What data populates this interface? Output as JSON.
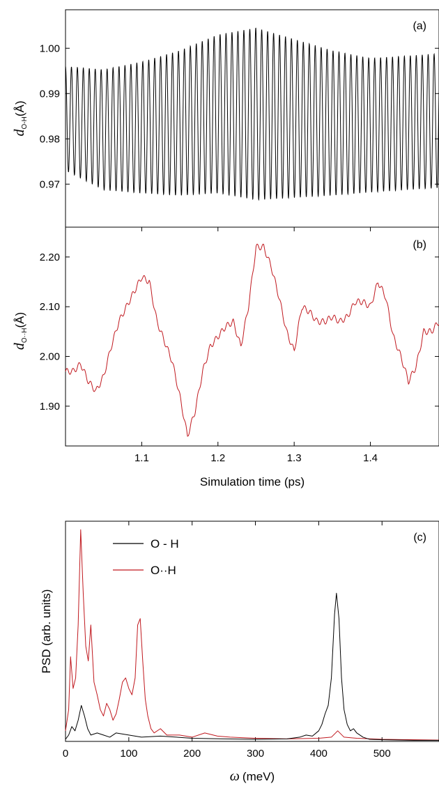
{
  "chart_data": [
    {
      "panel": "(a)",
      "type": "line",
      "ylabel_main": "d",
      "ylabel_sub": "O-H",
      "ylabel_unit": "(Å)",
      "xlim": [
        1.0,
        1.49
      ],
      "ylim": [
        0.9605,
        1.0085
      ],
      "yticks": [
        0.97,
        0.98,
        0.99,
        1.0
      ],
      "ytick_labels": [
        "0.97",
        "0.98",
        "0.99",
        "1.00"
      ],
      "color": "#000000",
      "signal": {
        "period_ps": 0.0078,
        "center": [
          [
            1.0,
            0.9845
          ],
          [
            1.05,
            0.982
          ],
          [
            1.1,
            0.9825
          ],
          [
            1.15,
            0.9835
          ],
          [
            1.2,
            0.9855
          ],
          [
            1.25,
            0.9855
          ],
          [
            1.3,
            0.9845
          ],
          [
            1.35,
            0.9835
          ],
          [
            1.4,
            0.983
          ],
          [
            1.49,
            0.984
          ]
        ],
        "amplitude": [
          [
            1.0,
            0.0115
          ],
          [
            1.05,
            0.0133
          ],
          [
            1.1,
            0.0145
          ],
          [
            1.15,
            0.016
          ],
          [
            1.2,
            0.0175
          ],
          [
            1.25,
            0.019
          ],
          [
            1.3,
            0.0175
          ],
          [
            1.35,
            0.016
          ],
          [
            1.4,
            0.0148
          ],
          [
            1.49,
            0.0148
          ]
        ]
      }
    },
    {
      "panel": "(b)",
      "type": "line",
      "ylabel_main": "d",
      "ylabel_sub": "O··H",
      "ylabel_unit": "(Å)",
      "xlim": [
        1.0,
        1.49
      ],
      "ylim": [
        1.82,
        2.26
      ],
      "yticks": [
        1.9,
        2.0,
        2.1,
        2.2
      ],
      "ytick_labels": [
        "1.90",
        "2.00",
        "2.10",
        "2.20"
      ],
      "xticks": [
        1.1,
        1.2,
        1.3,
        1.4
      ],
      "xtick_labels": [
        "1.1",
        "1.2",
        "1.3",
        "1.4"
      ],
      "xlabel": "Simulation time (ps)",
      "color": "#c0181e",
      "x": [
        1.0,
        1.01,
        1.02,
        1.03,
        1.04,
        1.05,
        1.06,
        1.07,
        1.08,
        1.09,
        1.1,
        1.11,
        1.12,
        1.13,
        1.14,
        1.15,
        1.16,
        1.17,
        1.18,
        1.19,
        1.2,
        1.21,
        1.22,
        1.23,
        1.24,
        1.25,
        1.26,
        1.27,
        1.28,
        1.29,
        1.3,
        1.31,
        1.32,
        1.33,
        1.34,
        1.35,
        1.36,
        1.37,
        1.38,
        1.39,
        1.4,
        1.41,
        1.42,
        1.43,
        1.44,
        1.45,
        1.46,
        1.47,
        1.48,
        1.49
      ],
      "values": [
        1.97,
        1.97,
        1.985,
        1.95,
        1.93,
        1.96,
        2.02,
        2.07,
        2.1,
        2.13,
        2.16,
        2.15,
        2.07,
        2.03,
        1.99,
        1.92,
        1.84,
        1.89,
        1.97,
        2.02,
        2.04,
        2.06,
        2.07,
        2.02,
        2.1,
        2.22,
        2.22,
        2.18,
        2.12,
        2.05,
        2.01,
        2.1,
        2.09,
        2.07,
        2.07,
        2.08,
        2.07,
        2.08,
        2.11,
        2.11,
        2.1,
        2.15,
        2.12,
        2.04,
        2.0,
        1.95,
        1.98,
        2.05,
        2.05,
        2.07
      ]
    },
    {
      "panel": "(c)",
      "type": "line",
      "ylabel": "PSD (arb. units)",
      "xlabel_sym": "ω",
      "xlabel_unit": "(meV)",
      "xlim": [
        0,
        590
      ],
      "ylim": [
        0,
        1.04
      ],
      "xticks": [
        0,
        100,
        200,
        300,
        400,
        500
      ],
      "xtick_labels": [
        "0",
        "100",
        "200",
        "300",
        "400",
        "500"
      ],
      "series": [
        {
          "name": "O - H",
          "color": "#000000",
          "x": [
            0,
            5,
            10,
            15,
            20,
            25,
            30,
            35,
            40,
            50,
            60,
            70,
            80,
            100,
            120,
            150,
            200,
            250,
            300,
            350,
            370,
            380,
            390,
            400,
            405,
            410,
            415,
            420,
            425,
            428,
            432,
            436,
            440,
            445,
            450,
            455,
            460,
            470,
            480,
            500,
            550,
            590
          ],
          "values": [
            0.01,
            0.03,
            0.07,
            0.05,
            0.1,
            0.17,
            0.12,
            0.06,
            0.03,
            0.04,
            0.03,
            0.02,
            0.04,
            0.03,
            0.02,
            0.025,
            0.015,
            0.012,
            0.01,
            0.012,
            0.02,
            0.03,
            0.025,
            0.05,
            0.08,
            0.13,
            0.17,
            0.3,
            0.6,
            0.7,
            0.58,
            0.3,
            0.15,
            0.08,
            0.05,
            0.06,
            0.04,
            0.02,
            0.01,
            0.008,
            0.005,
            0.005
          ]
        },
        {
          "name": "O··H",
          "color": "#c0181e",
          "x": [
            0,
            5,
            8,
            12,
            16,
            20,
            24,
            28,
            32,
            36,
            40,
            45,
            50,
            55,
            60,
            65,
            70,
            75,
            80,
            85,
            90,
            95,
            100,
            105,
            110,
            114,
            118,
            122,
            126,
            130,
            135,
            140,
            150,
            160,
            180,
            200,
            220,
            240,
            260,
            300,
            350,
            400,
            420,
            430,
            440,
            460,
            500,
            550,
            590
          ],
          "values": [
            0.05,
            0.15,
            0.4,
            0.25,
            0.3,
            0.55,
            1.0,
            0.7,
            0.45,
            0.38,
            0.55,
            0.28,
            0.22,
            0.15,
            0.12,
            0.18,
            0.15,
            0.1,
            0.13,
            0.2,
            0.28,
            0.3,
            0.25,
            0.22,
            0.3,
            0.55,
            0.58,
            0.38,
            0.2,
            0.12,
            0.06,
            0.04,
            0.06,
            0.03,
            0.03,
            0.02,
            0.04,
            0.025,
            0.02,
            0.015,
            0.012,
            0.015,
            0.02,
            0.05,
            0.02,
            0.015,
            0.01,
            0.008,
            0.006
          ]
        }
      ]
    }
  ]
}
